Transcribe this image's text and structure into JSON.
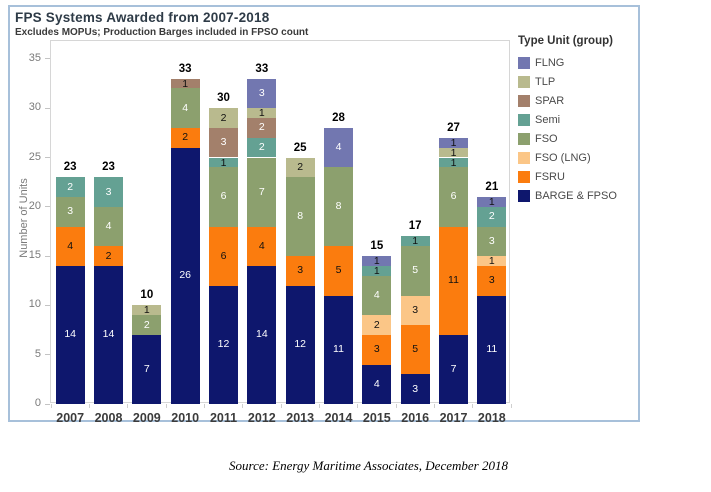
{
  "header": {
    "title": "FPS Systems Awarded from 2007-2018",
    "subtitle": "Excludes MOPUs; Production Barges included in FPSO count"
  },
  "legend": {
    "title": "Type Unit (group)",
    "items": [
      {
        "label": "FLNG",
        "color": "#7277b0"
      },
      {
        "label": "TLP",
        "color": "#b9ba8e"
      },
      {
        "label": "SPAR",
        "color": "#a3806b"
      },
      {
        "label": "Semi",
        "color": "#64a193"
      },
      {
        "label": "FSO",
        "color": "#8ca06e"
      },
      {
        "label": "FSO (LNG)",
        "color": "#fbc687"
      },
      {
        "label": "FSRU",
        "color": "#fb7c0e"
      },
      {
        "label": "BARGE & FPSO",
        "color": "#0e176d"
      }
    ]
  },
  "source_note": "Source: Energy Maritime Associates, December 2018",
  "chart_data": {
    "type": "bar",
    "stacked": true,
    "title": "FPS Systems Awarded from 2007-2018",
    "subtitle": "Excludes MOPUs; Production Barges included in FPSO count",
    "xlabel": "",
    "ylabel": "Number of Units",
    "categories": [
      "2007",
      "2008",
      "2009",
      "2010",
      "2011",
      "2012",
      "2013",
      "2014",
      "2015",
      "2016",
      "2017",
      "2018"
    ],
    "series": [
      {
        "name": "BARGE & FPSO",
        "color": "#0e176d",
        "values": [
          14,
          14,
          7,
          26,
          12,
          14,
          12,
          11,
          4,
          3,
          7,
          11
        ]
      },
      {
        "name": "FSRU",
        "color": "#fb7c0e",
        "values": [
          4,
          2,
          0,
          2,
          6,
          4,
          3,
          5,
          3,
          5,
          11,
          3
        ]
      },
      {
        "name": "FSO (LNG)",
        "color": "#fbc687",
        "values": [
          0,
          0,
          0,
          0,
          0,
          0,
          0,
          0,
          2,
          3,
          0,
          1
        ]
      },
      {
        "name": "FSO",
        "color": "#8ca06e",
        "values": [
          3,
          4,
          2,
          4,
          6,
          7,
          8,
          8,
          4,
          5,
          6,
          3
        ]
      },
      {
        "name": "Semi",
        "color": "#64a193",
        "values": [
          2,
          3,
          0,
          0,
          1,
          2,
          0,
          0,
          1,
          1,
          1,
          2
        ]
      },
      {
        "name": "SPAR",
        "color": "#a3806b",
        "values": [
          0,
          0,
          0,
          1,
          3,
          2,
          0,
          0,
          0,
          0,
          0,
          0
        ]
      },
      {
        "name": "TLP",
        "color": "#b9ba8e",
        "values": [
          0,
          0,
          1,
          0,
          2,
          1,
          2,
          0,
          0,
          0,
          1,
          0
        ]
      },
      {
        "name": "FLNG",
        "color": "#7277b0",
        "values": [
          0,
          0,
          0,
          0,
          0,
          3,
          0,
          4,
          1,
          0,
          1,
          1
        ]
      }
    ],
    "totals": [
      23,
      23,
      10,
      33,
      30,
      33,
      25,
      28,
      15,
      17,
      27,
      21
    ],
    "yticks": [
      0,
      5,
      10,
      15,
      20,
      25,
      30,
      35
    ],
    "ylim": [
      0,
      35
    ],
    "grid": false,
    "legend_position": "right",
    "legend_order_top_to_bottom": [
      "FLNG",
      "TLP",
      "SPAR",
      "Semi",
      "FSO",
      "FSO (LNG)",
      "FSRU",
      "BARGE & FPSO"
    ],
    "dark_label_series": [
      "TLP",
      "FSO (LNG)",
      "FSRU"
    ]
  }
}
